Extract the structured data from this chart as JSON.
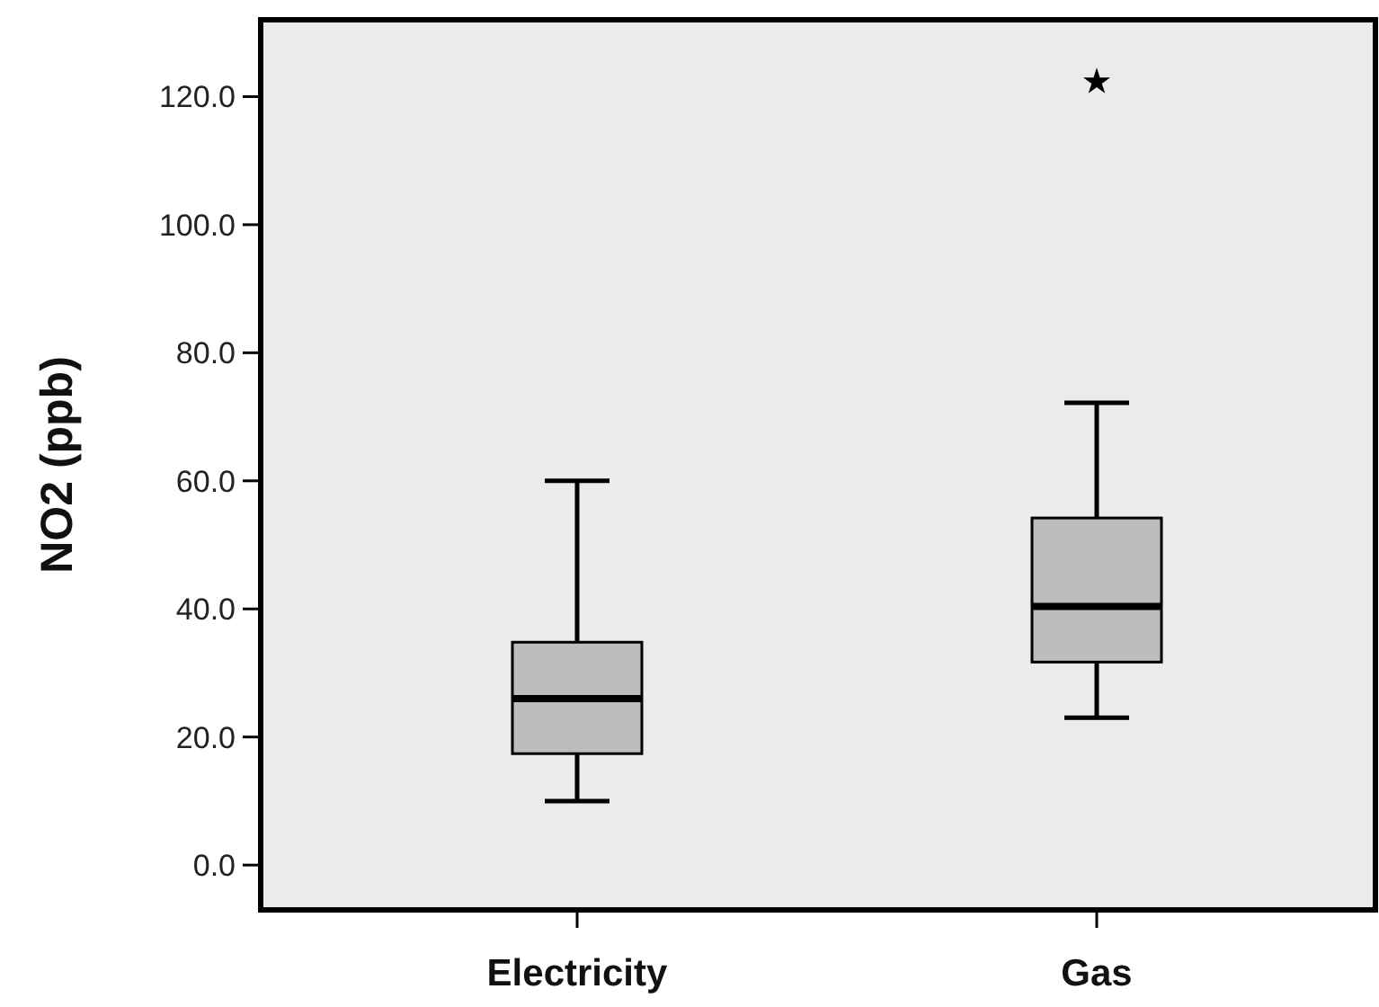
{
  "chart_data": {
    "type": "box",
    "ylabel": "NO2 (ppb)",
    "categories": [
      "Electricity",
      "Gas"
    ],
    "boxes": [
      {
        "low": 10,
        "q1": 17.4,
        "median": 26,
        "q3": 34.8,
        "high": 60
      },
      {
        "low": 23,
        "q1": 31.7,
        "median": 40.4,
        "q3": 54.2,
        "high": 72.2,
        "outliers": [
          122.3
        ]
      }
    ],
    "color": "#bdbdbd",
    "marker": "star",
    "ylim": [
      -7,
      132
    ],
    "yticks": [
      {
        "value": 0,
        "label": "0.0"
      },
      {
        "value": 20,
        "label": "20.0"
      },
      {
        "value": 40,
        "label": "40.0"
      },
      {
        "value": 60,
        "label": "60.0"
      },
      {
        "value": 80,
        "label": "80.0"
      },
      {
        "value": 100,
        "label": "100.0"
      },
      {
        "value": 120,
        "label": "120.0"
      }
    ]
  }
}
